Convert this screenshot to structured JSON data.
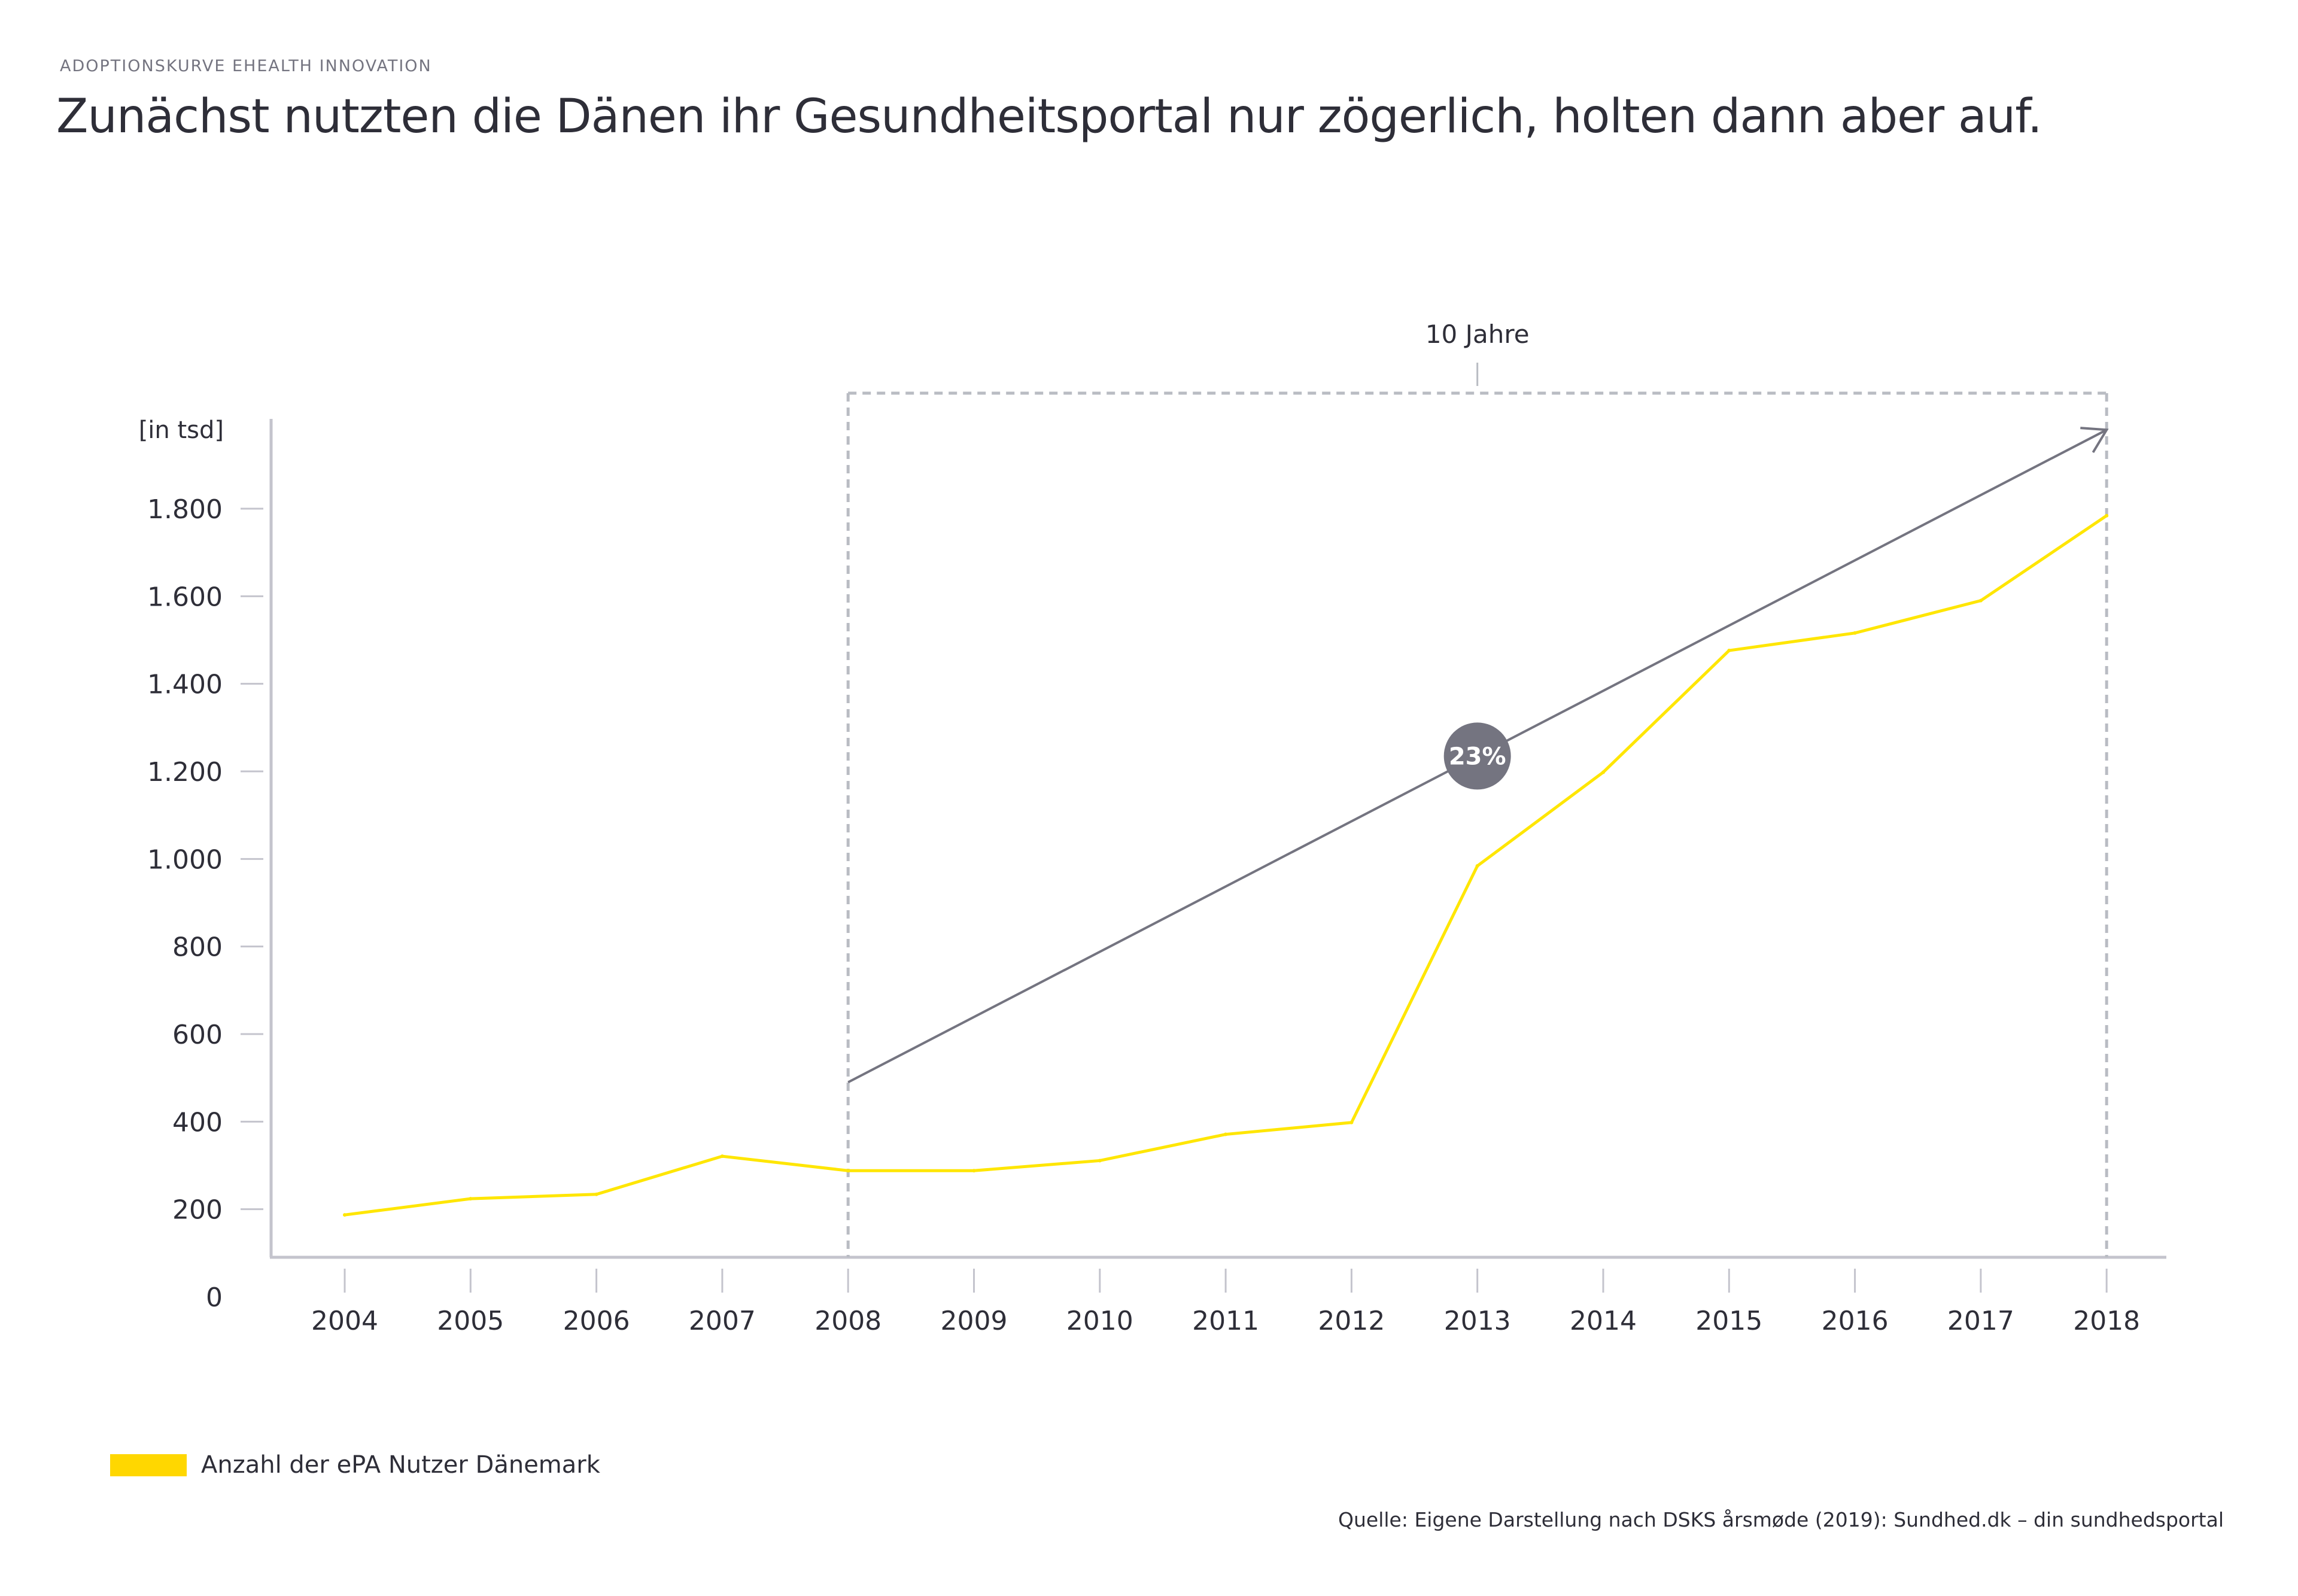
{
  "header": {
    "kicker": "ADOPTIONSKURVE EHEALTH INNOVATION",
    "title": "Zunächst nutzten die Dänen ihr Gesundheitsportal nur zögerlich, holten dann aber auf."
  },
  "colors": {
    "series": "#ffe600",
    "legend_swatch": "#ffd700",
    "trend": "#747480",
    "axis": "#c4c4cd",
    "bracket": "#b9bcc3",
    "text": "#2e2e38"
  },
  "chart_data": {
    "type": "line",
    "title": "Zunächst nutzten die Dänen ihr Gesundheitsportal nur zögerlich, holten dann aber auf.",
    "xlabel": "",
    "ylabel": "[in tsd]",
    "x": [
      "2004",
      "2005",
      "2006",
      "2007",
      "2008",
      "2009",
      "2010",
      "2011",
      "2012",
      "2013",
      "2014",
      "2015",
      "2016",
      "2017",
      "2018"
    ],
    "series": [
      {
        "name": "Anzahl der ePA Nutzer Dänemark",
        "values": [
          187,
          224,
          234,
          321,
          288,
          288,
          311,
          371,
          398,
          984,
          1198,
          1476,
          1516,
          1590,
          1784
        ]
      }
    ],
    "ylim": [
      0,
      1800
    ],
    "yticks": [
      0,
      200,
      400,
      600,
      800,
      1000,
      1200,
      1400,
      1600,
      1800
    ],
    "ytick_labels": [
      "0",
      "200",
      "400",
      "600",
      "800",
      "1.000",
      "1.200",
      "1.400",
      "1.600",
      "1.800"
    ],
    "grid": false,
    "legend_position": "bottom-left",
    "annotations": {
      "span_label": "10 Jahre",
      "span_from": "2008",
      "span_to": "2018",
      "trend_arrow": {
        "from_x": "2008",
        "from_y": 490,
        "to_x": "2018",
        "to_y": 1980
      },
      "growth_badge": "23%"
    }
  },
  "legend": {
    "items": [
      {
        "label": "Anzahl der ePA Nutzer Dänemark"
      }
    ]
  },
  "footer": {
    "source": "Quelle: Eigene Darstellung nach DSKS årsmøde (2019): Sundhed.dk – din sundhedsportal"
  }
}
